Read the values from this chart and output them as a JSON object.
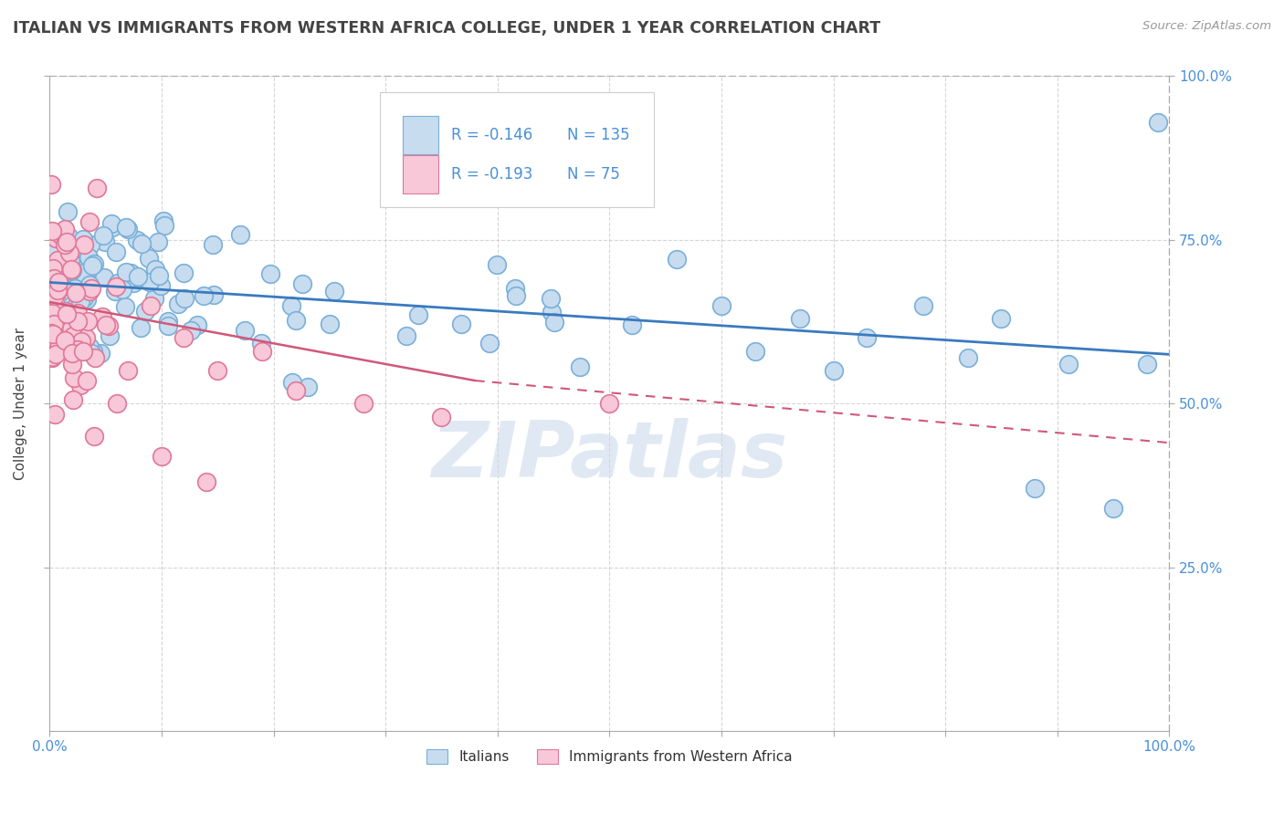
{
  "title": "ITALIAN VS IMMIGRANTS FROM WESTERN AFRICA COLLEGE, UNDER 1 YEAR CORRELATION CHART",
  "source": "Source: ZipAtlas.com",
  "ylabel": "College, Under 1 year",
  "xlabel": "",
  "xlim": [
    0.0,
    1.0
  ],
  "ylim": [
    0.0,
    1.0
  ],
  "series1": {
    "name": "Italians",
    "color": "#c8dcf0",
    "edge_color": "#7ab0d8",
    "R": -0.146,
    "N": 135,
    "trend_color": "#3a7abf",
    "trend_solid": true
  },
  "series2": {
    "name": "Immigrants from Western Africa",
    "color": "#f8c8d8",
    "edge_color": "#e07898",
    "R": -0.193,
    "N": 75,
    "trend_color": "#d05878",
    "trend_solid": false
  },
  "watermark": "ZIPatlas",
  "title_color": "#444444",
  "title_fontsize": 12.5,
  "axis_color": "#4a90d9",
  "legend_R_color": "#4a90d9",
  "background_color": "#ffffff",
  "grid_color": "#bbbbbb",
  "trend1_start": 0.685,
  "trend1_end": 0.575,
  "trend2_start_x": 0.0,
  "trend2_solid_end_x": 0.38,
  "trend2_start_y": 0.655,
  "trend2_solid_end_y": 0.535,
  "trend2_dash_end_y": 0.44
}
